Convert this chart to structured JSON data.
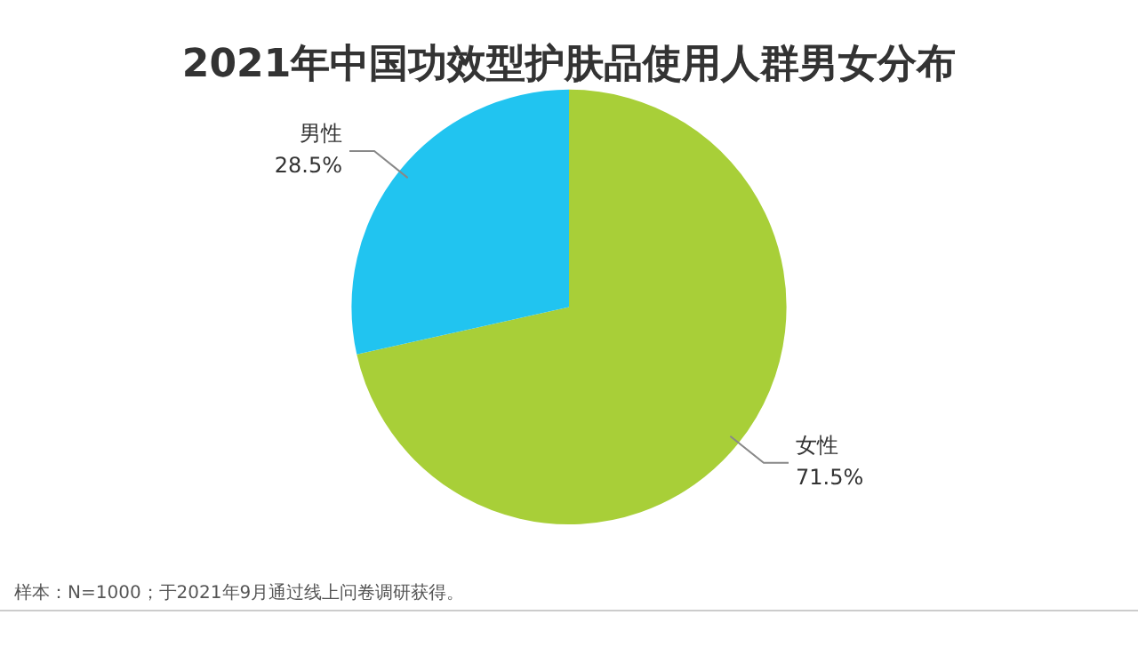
{
  "chart_data": {
    "type": "pie",
    "title": "2021年中国功效型护肤品使用人群男女分布",
    "categories": [
      "女性",
      "男性"
    ],
    "values": [
      71.5,
      28.5
    ],
    "value_labels": [
      "71.5%",
      "28.5%"
    ],
    "colors": [
      "#a8cf38",
      "#21c4f0"
    ],
    "legend": false,
    "annotations": [
      "样本：N=1000；于2021年9月通过线上问卷调研获得。"
    ]
  }
}
